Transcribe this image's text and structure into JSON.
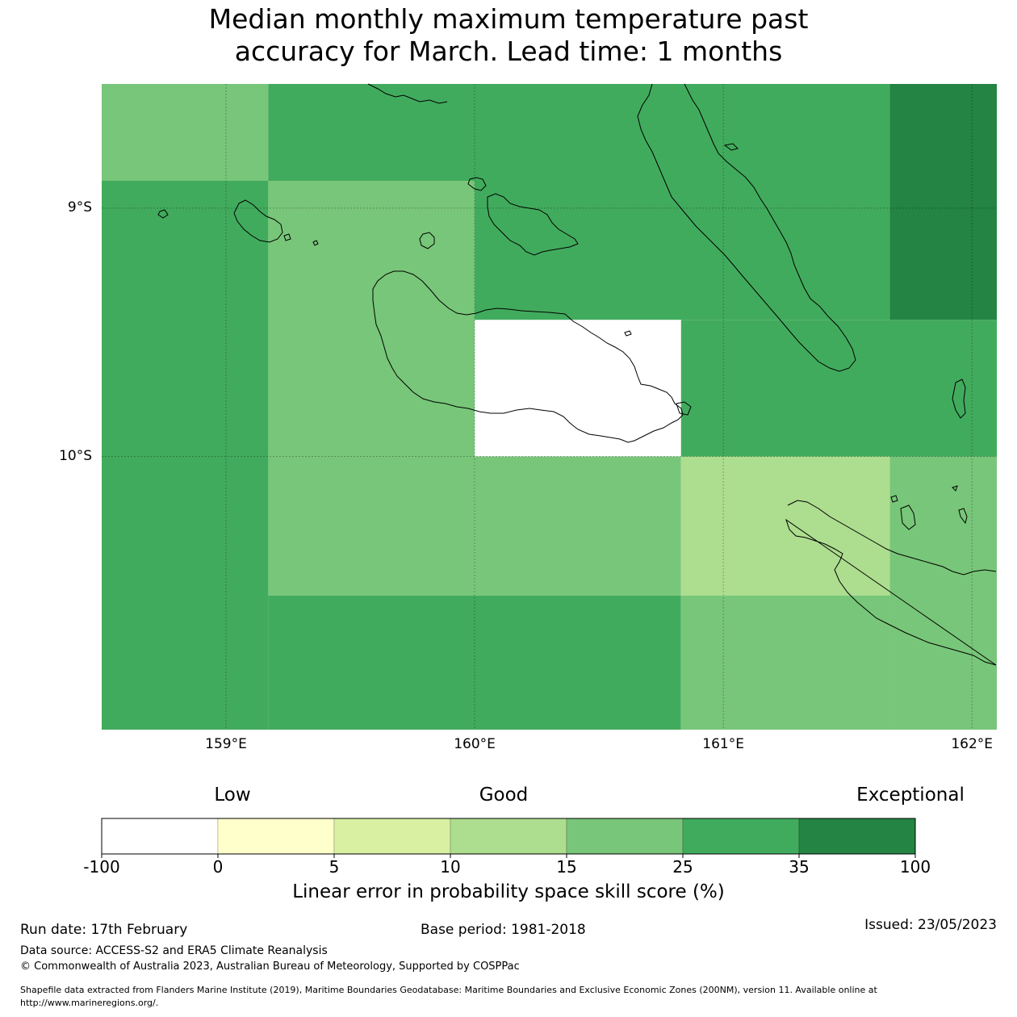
{
  "title": {
    "line1": "Median monthly maximum temperature past",
    "line2": "accuracy for March. Lead time: 1 months"
  },
  "map": {
    "lon_range": [
      158.5,
      162.1
    ],
    "lat_range": [
      -11.1,
      -8.5
    ],
    "lat_ticks": [
      {
        "value": -9,
        "label": "9°S"
      },
      {
        "value": -10,
        "label": "10°S"
      }
    ],
    "lon_ticks": [
      {
        "value": 159,
        "label": "159°E"
      },
      {
        "value": 160,
        "label": "160°E"
      },
      {
        "value": 161,
        "label": "161°E"
      },
      {
        "value": 162,
        "label": "162°E"
      }
    ],
    "grid": true,
    "cells": [
      {
        "lon": [
          158.5,
          159.17
        ],
        "lat": [
          -8.89,
          -8.5
        ],
        "category": "15-25"
      },
      {
        "lon": [
          159.17,
          161.67
        ],
        "lat": [
          -8.89,
          -8.5
        ],
        "category": "25-35"
      },
      {
        "lon": [
          161.67,
          162.1
        ],
        "lat": [
          -9.45,
          -8.5
        ],
        "category": "35-100"
      },
      {
        "lon": [
          158.5,
          159.17
        ],
        "lat": [
          -11.1,
          -8.89
        ],
        "category": "25-35"
      },
      {
        "lon": [
          159.17,
          160.0
        ],
        "lat": [
          -10.56,
          -8.89
        ],
        "category": "15-25"
      },
      {
        "lon": [
          160.0,
          161.67
        ],
        "lat": [
          -9.45,
          -8.89
        ],
        "category": "25-35"
      },
      {
        "lon": [
          160.0,
          160.83
        ],
        "lat": [
          -10.0,
          -9.45
        ],
        "category": "no-data"
      },
      {
        "lon": [
          160.83,
          162.1
        ],
        "lat": [
          -10.0,
          -9.45
        ],
        "category": "25-35"
      },
      {
        "lon": [
          160.0,
          160.83
        ],
        "lat": [
          -10.56,
          -10.0
        ],
        "category": "15-25"
      },
      {
        "lon": [
          160.83,
          161.67
        ],
        "lat": [
          -10.56,
          -10.0
        ],
        "category": "10-15"
      },
      {
        "lon": [
          161.67,
          162.1
        ],
        "lat": [
          -11.1,
          -10.0
        ],
        "category": "15-25"
      },
      {
        "lon": [
          159.17,
          160.83
        ],
        "lat": [
          -11.1,
          -10.56
        ],
        "category": "25-35"
      },
      {
        "lon": [
          160.83,
          161.67
        ],
        "lat": [
          -11.1,
          -10.56
        ],
        "category": "15-25"
      }
    ]
  },
  "colorbar": {
    "words": {
      "low": "Low",
      "good": "Good",
      "exceptional": "Exceptional"
    },
    "ticks": [
      "-100",
      "0",
      "5",
      "10",
      "15",
      "25",
      "35",
      "100"
    ],
    "colors": [
      "#ffffff",
      "#ffffcc",
      "#d9f0a3",
      "#addd8e",
      "#78c679",
      "#41ab5d",
      "#238443"
    ],
    "label": "Linear error in probability space skill score (%)"
  },
  "footer": {
    "run_date": "Run date: 17th February",
    "base_period": "Base period: 1981-2018",
    "issued": "Issued: 23/05/2023",
    "data_source": "Data source: ACCESS-S2 and ERA5 Climate Reanalysis",
    "copyright": "© Commonwealth of Australia 2023, Australian Bureau of Meteorology, Supported by COSPPac",
    "shapefile": "Shapefile data extracted from Flanders Marine Institute (2019), Maritime Boundaries Geodatabase: Maritime Boundaries and Exclusive Economic Zones (200NM), version 11. Available online at",
    "shapefile_url": "http://www.marineregions.org/."
  }
}
